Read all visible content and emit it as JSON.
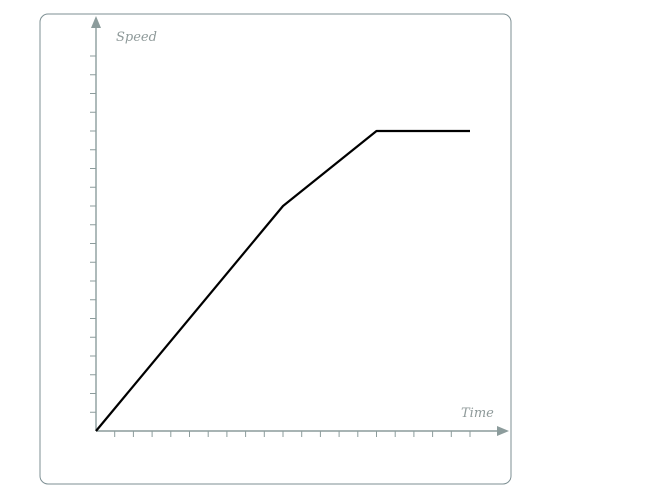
{
  "chart_data": {
    "type": "line",
    "xlabel": "Time",
    "ylabel": "Speed",
    "x_ticks": 20,
    "y_ticks": 20,
    "xlim": [
      0,
      20
    ],
    "ylim": [
      0,
      20
    ],
    "series": [
      {
        "x": [
          0,
          10,
          15,
          20
        ],
        "y": [
          0,
          12,
          16,
          16
        ]
      }
    ],
    "colors": {
      "line": "#000000",
      "axis": "#8c9c9c",
      "frame": "#7d8f93"
    }
  }
}
